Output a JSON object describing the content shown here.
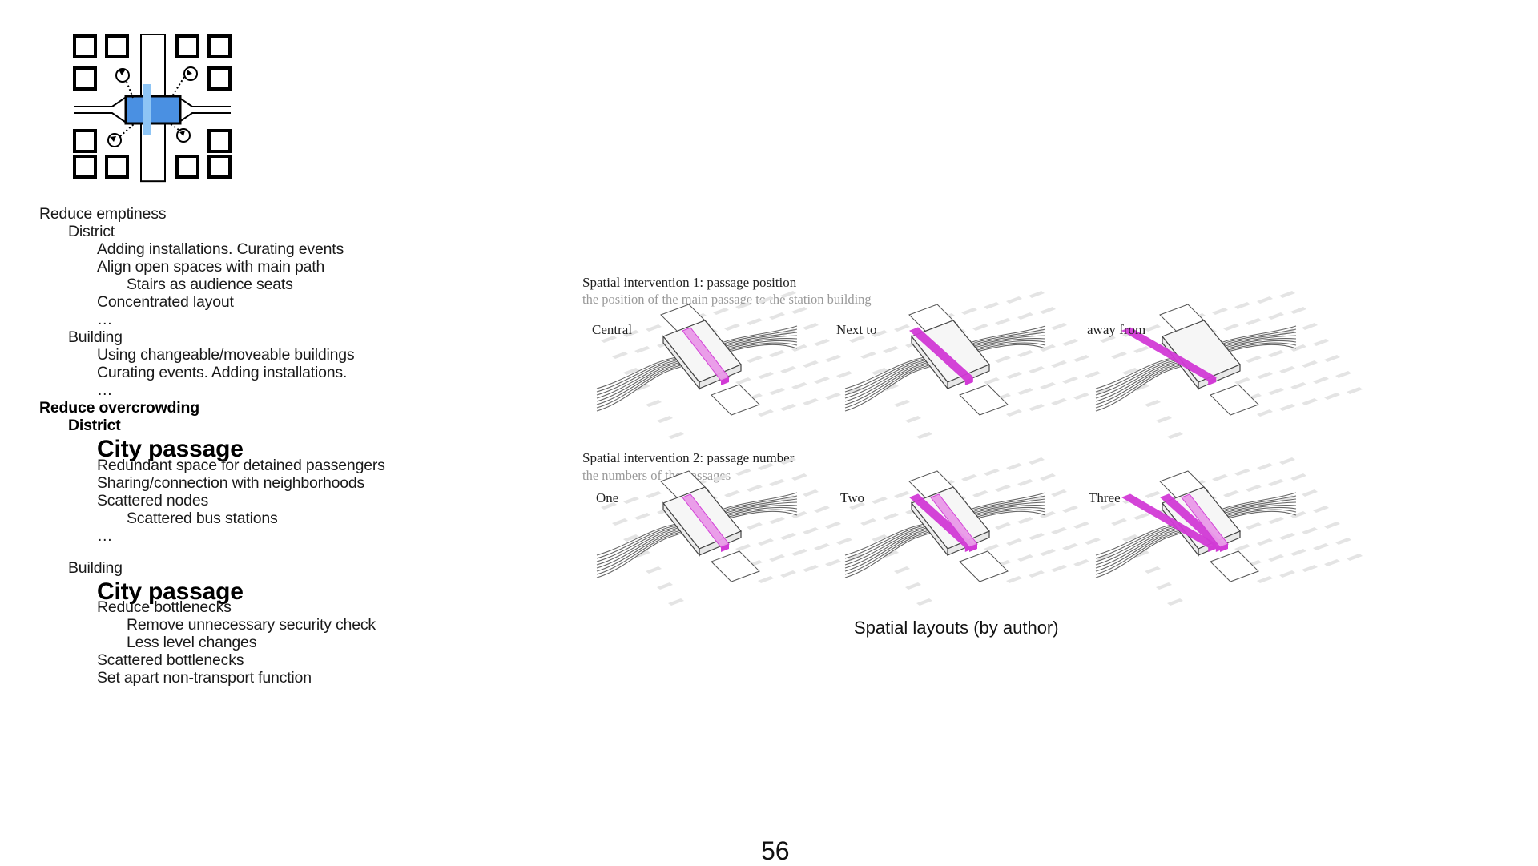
{
  "outline": [
    {
      "text": "Reduce emptiness",
      "level": 0,
      "style": "normal"
    },
    {
      "text": "District",
      "level": 1,
      "style": "normal"
    },
    {
      "text": "Adding installations. Curating events",
      "level": 2,
      "style": "normal"
    },
    {
      "text": "Align open spaces with main path",
      "level": 2,
      "style": "normal"
    },
    {
      "text": "Stairs as audience seats",
      "level": 3,
      "style": "normal"
    },
    {
      "text": "Concentrated layout",
      "level": 2,
      "style": "normal"
    },
    {
      "text": "…",
      "level": 2,
      "style": "normal"
    },
    {
      "text": "Building",
      "level": 1,
      "style": "normal"
    },
    {
      "text": "Using changeable/moveable buildings",
      "level": 2,
      "style": "normal"
    },
    {
      "text": "Curating events. Adding installations.",
      "level": 2,
      "style": "normal"
    },
    {
      "text": "…",
      "level": 2,
      "style": "normal"
    },
    {
      "text": "Reduce overcrowding",
      "level": 0,
      "style": "bold"
    },
    {
      "text": "District",
      "level": 1,
      "style": "bold"
    },
    {
      "text": "City passage",
      "level": 2,
      "style": "big"
    },
    {
      "text": "Redundant space for detained passengers",
      "level": 2,
      "style": "normal"
    },
    {
      "text": "Sharing/connection with neighborhoods",
      "level": 2,
      "style": "normal"
    },
    {
      "text": "Scattered nodes",
      "level": 2,
      "style": "normal"
    },
    {
      "text": "Scattered bus stations",
      "level": 3,
      "style": "normal"
    },
    {
      "text": "…",
      "level": 2,
      "style": "normal"
    },
    {
      "text": "Building",
      "level": 1,
      "style": "normal"
    },
    {
      "text": "City passage",
      "level": 2,
      "style": "big"
    },
    {
      "text": "Reduce bottlenecks",
      "level": 2,
      "style": "normal"
    },
    {
      "text": "Remove unnecessary security check",
      "level": 3,
      "style": "normal"
    },
    {
      "text": "Less level changes",
      "level": 3,
      "style": "normal"
    },
    {
      "text": "Scattered bottlenecks",
      "level": 2,
      "style": "normal"
    },
    {
      "text": "Set apart non-transport function",
      "level": 2,
      "style": "normal"
    }
  ],
  "figure": {
    "row1": {
      "title": "Spatial intervention 1: passage position",
      "subtitle": "the position of the main passage to the station building",
      "cells": [
        "Central",
        "Next to",
        "away from"
      ]
    },
    "row2": {
      "title": "Spatial intervention 2: passage number",
      "subtitle": "the numbers of the passages",
      "cells": [
        "One",
        "Two",
        "Three"
      ]
    },
    "caption": "Spatial layouts (by author)"
  },
  "page_number": "56",
  "colors": {
    "diagram_blue": "#4a90e2",
    "diagram_light_blue": "#8ec5f5",
    "passage_magenta": "#d23ad6",
    "passage_light": "#ea9ae9"
  }
}
